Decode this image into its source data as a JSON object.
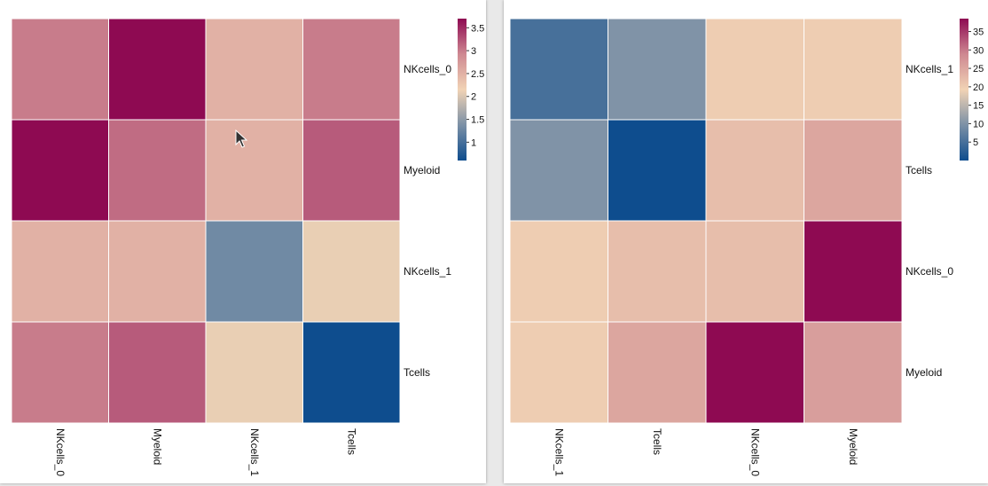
{
  "chart_data": [
    {
      "type": "heatmap",
      "rows": [
        "NKcells_0",
        "Myeloid",
        "NKcells_1",
        "Tcells"
      ],
      "columns": [
        "NKcells_0",
        "Myeloid",
        "NKcells_1",
        "Tcells"
      ],
      "values": [
        [
          3.0,
          3.7,
          2.5,
          3.0
        ],
        [
          3.7,
          3.1,
          2.5,
          3.2
        ],
        [
          2.5,
          2.5,
          1.3,
          2.1
        ],
        [
          3.0,
          3.2,
          2.1,
          0.6
        ]
      ],
      "colorbar": {
        "min": 0.6,
        "max": 3.7,
        "ticks": [
          1,
          1.5,
          2,
          2.5,
          3,
          3.5
        ],
        "tick_labels": [
          "1",
          "1.5",
          "2",
          "2.5",
          "3",
          "3.5"
        ]
      },
      "colormap": [
        "#0e4d8e",
        "#7b90a6",
        "#f1d3b5",
        "#ce8891",
        "#8e0a52"
      ]
    },
    {
      "type": "heatmap",
      "rows": [
        "NKcells_1",
        "Tcells",
        "NKcells_0",
        "Myeloid"
      ],
      "columns": [
        "NKcells_1",
        "Tcells",
        "NKcells_0",
        "Myeloid"
      ],
      "values": [
        [
          5.0,
          10.0,
          20.0,
          20.0
        ],
        [
          10.0,
          0.0,
          22.0,
          25.0
        ],
        [
          20.0,
          22.0,
          22.0,
          38.5
        ],
        [
          20.0,
          25.0,
          38.5,
          26.0
        ]
      ],
      "colorbar": {
        "min": 0.0,
        "max": 38.5,
        "ticks": [
          5,
          10,
          15,
          20,
          25,
          30,
          35
        ],
        "tick_labels": [
          "5",
          "10",
          "15",
          "20",
          "25",
          "30",
          "35"
        ]
      },
      "colormap": [
        "#0e4d8e",
        "#7b90a6",
        "#f1d3b5",
        "#ce8891",
        "#8e0a52"
      ]
    }
  ]
}
